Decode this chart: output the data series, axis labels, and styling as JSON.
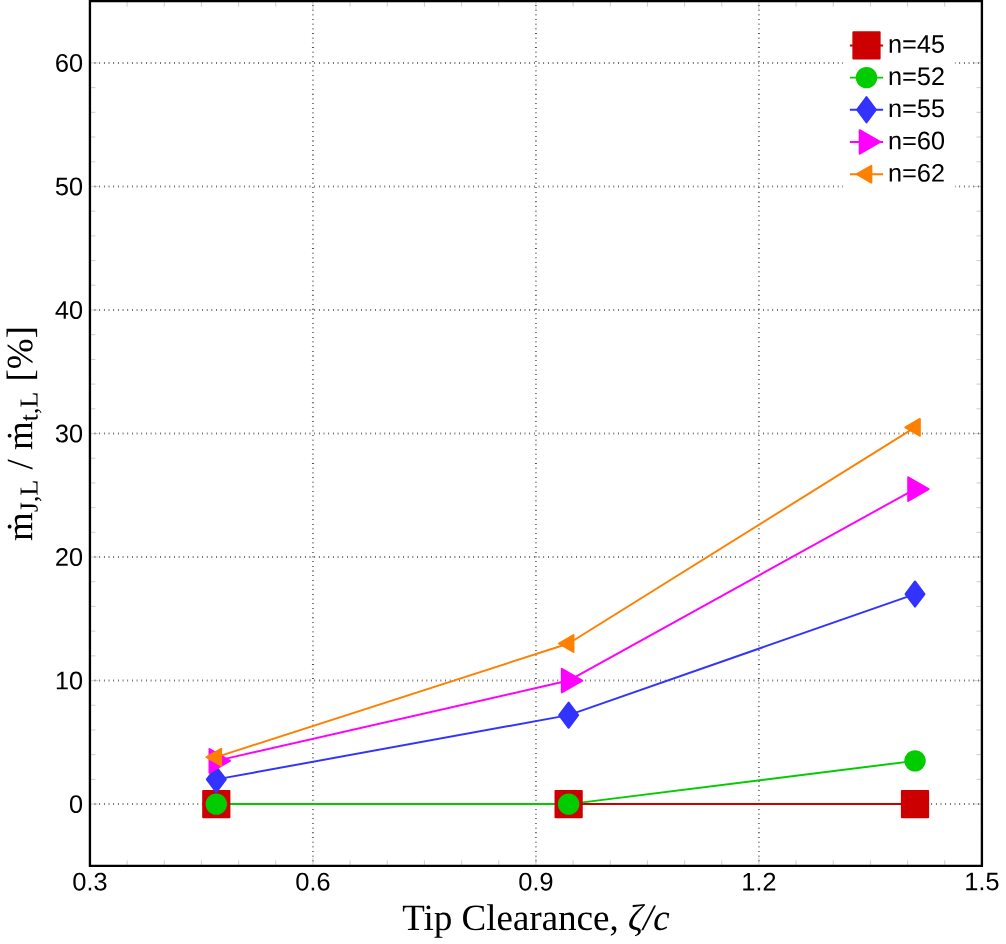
{
  "chart_data": {
    "type": "line",
    "xlabel": "Tip Clearance, *ζ/c*",
    "ylabel": "ṁ$_{J,L}$ / ṁ$_{t,L}$ [%]",
    "xlim": [
      0.3,
      1.5
    ],
    "xticks": [
      0.3,
      0.6,
      0.9,
      1.2,
      1.5
    ],
    "ylim": [
      -5,
      65
    ],
    "yticks": [
      0,
      10,
      20,
      30,
      40,
      50,
      60
    ],
    "grid": true,
    "legend": "top right",
    "line_style": "solid",
    "x": [
      0.47,
      0.944,
      1.41
    ],
    "series": [
      {
        "name": "n=45",
        "color": "#cc0000",
        "marker": "square",
        "values": [
          0,
          0,
          0
        ]
      },
      {
        "name": "n=52",
        "color": "#00cc00",
        "marker": "circle",
        "values": [
          0,
          0,
          3.5
        ]
      },
      {
        "name": "n=55",
        "color": "#3333ff",
        "marker": "diamond",
        "values": [
          2,
          7.2,
          17
        ]
      },
      {
        "name": "n=60",
        "color": "#ff00ff",
        "marker": "triangle-right",
        "values": [
          3.5,
          10,
          25.5
        ]
      },
      {
        "name": "n=62",
        "color": "#ff8000",
        "marker": "triangle-left",
        "values": [
          3.8,
          13,
          30.5
        ]
      }
    ]
  }
}
